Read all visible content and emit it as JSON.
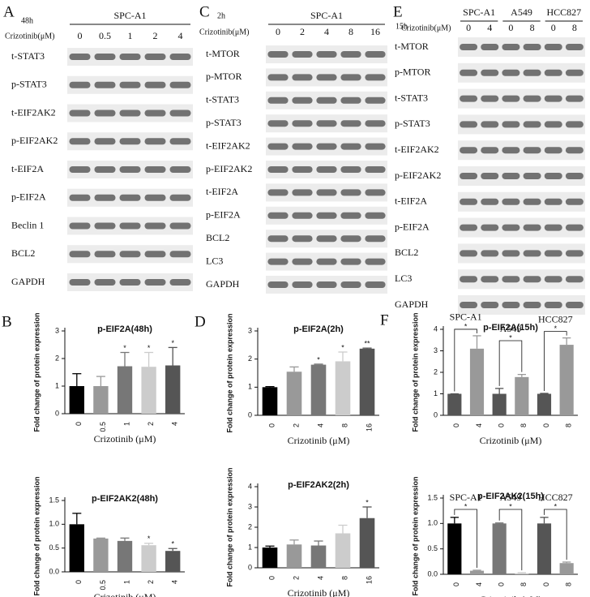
{
  "blots": [
    {
      "panel": "A",
      "time": "48h",
      "groups": [
        "SPC-A1"
      ],
      "dose_label": "Crizotinib(μM)",
      "doses": [
        "0",
        "0.5",
        "1",
        "2",
        "4"
      ],
      "rows": [
        "t-STAT3",
        "p-STAT3",
        "t-EIF2AK2",
        "p-EIF2AK2",
        "t-EIF2A",
        "p-EIF2A",
        "Beclin 1",
        "BCL2",
        "GAPDH"
      ]
    },
    {
      "panel": "C",
      "time": "2h",
      "groups": [
        "SPC-A1"
      ],
      "dose_label": "Crizotinib(μM)",
      "doses": [
        "0",
        "2",
        "4",
        "8",
        "16"
      ],
      "rows": [
        "t-MTOR",
        "p-MTOR",
        "t-STAT3",
        "p-STAT3",
        "t-EIF2AK2",
        "p-EIF2AK2",
        "t-EIF2A",
        "p-EIF2A",
        "BCL2",
        "LC3",
        "GAPDH"
      ]
    },
    {
      "panel": "E",
      "time": "15h",
      "groups": [
        "SPC-A1",
        "A549",
        "HCC827"
      ],
      "dose_label": "Crizotinib(μM)",
      "doses": [
        "0",
        "4",
        "0",
        "8",
        "0",
        "8"
      ],
      "rows": [
        "t-MTOR",
        "p-MTOR",
        "t-STAT3",
        "p-STAT3",
        "t-EIF2AK2",
        "p-EIF2AK2",
        "t-EIF2A",
        "p-EIF2A",
        "BCL2",
        "LC3",
        "GAPDH"
      ]
    }
  ],
  "chart_data": [
    {
      "type": "bar",
      "panel": "B",
      "title": "p-EIF2A(48h)",
      "ylabel": "Fold change of protein expression",
      "xlabel": "Crizotinib (μM)",
      "categories": [
        "0",
        "0.5",
        "1",
        "2",
        "4"
      ],
      "values": [
        1.0,
        1.0,
        1.72,
        1.7,
        1.75
      ],
      "errors": [
        0.45,
        0.35,
        0.5,
        0.52,
        0.65
      ],
      "stars": [
        null,
        null,
        "*",
        "*",
        "*"
      ],
      "colors": [
        "#000000",
        "#999999",
        "#777777",
        "#cccccc",
        "#555555"
      ],
      "ylim": [
        0,
        3
      ],
      "yticks": [
        0,
        1,
        2,
        3
      ]
    },
    {
      "type": "bar",
      "title": "p-EIF2AK2(48h)",
      "ylabel": "Fold change of protein expression",
      "xlabel": "Crizotinib (μM)",
      "categories": [
        "0",
        "0.5",
        "1",
        "2",
        "4"
      ],
      "values": [
        1.0,
        0.7,
        0.65,
        0.56,
        0.44
      ],
      "errors": [
        0.23,
        0.01,
        0.06,
        0.04,
        0.05
      ],
      "stars": [
        null,
        null,
        null,
        "*",
        "*"
      ],
      "colors": [
        "#000000",
        "#999999",
        "#777777",
        "#cccccc",
        "#555555"
      ],
      "ylim": [
        0,
        1.5
      ],
      "yticks": [
        {
          "value": 0,
          "label": "0.0"
        },
        {
          "value": 0.5,
          "label": "0.5"
        },
        {
          "value": 1,
          "label": "1.0"
        },
        {
          "value": 1.5,
          "label": "1.5"
        }
      ]
    },
    {
      "type": "bar",
      "panel": "D",
      "title": "p-EIF2A(2h)",
      "ylabel": "Fold change of protein expression",
      "xlabel": "Crizotinib (μM)",
      "categories": [
        "0",
        "2",
        "4",
        "8",
        "16"
      ],
      "values": [
        1.0,
        1.55,
        1.8,
        1.92,
        2.37
      ],
      "errors": [
        0.02,
        0.17,
        0.02,
        0.33,
        0.02
      ],
      "stars": [
        null,
        null,
        "*",
        "*",
        "**"
      ],
      "colors": [
        "#000000",
        "#999999",
        "#777777",
        "#cccccc",
        "#555555"
      ],
      "ylim": [
        0,
        3
      ],
      "yticks": [
        0,
        1,
        2,
        3
      ]
    },
    {
      "type": "bar",
      "title": "p-EIF2AK2(2h)",
      "ylabel": "Fold change of protein expression",
      "xlabel": "Crizotinib (μM)",
      "categories": [
        "0",
        "2",
        "4",
        "8",
        "16"
      ],
      "values": [
        1.0,
        1.15,
        1.1,
        1.7,
        2.45
      ],
      "errors": [
        0.07,
        0.22,
        0.22,
        0.4,
        0.55
      ],
      "stars": [
        null,
        null,
        null,
        null,
        "*"
      ],
      "colors": [
        "#000000",
        "#999999",
        "#777777",
        "#cccccc",
        "#555555"
      ],
      "ylim": [
        0,
        4
      ],
      "yticks": [
        0,
        1,
        2,
        3,
        4
      ]
    },
    {
      "type": "bar",
      "panel": "F",
      "title": "p-EIF2A(15h)",
      "ylabel": "Fold change of protein expression",
      "xlabel": "Crizotinib (μM)",
      "groups": [
        "SPC-A1",
        "A549",
        "HCC827"
      ],
      "group_stars": [
        "*",
        "*",
        "*"
      ],
      "categories": [
        "0",
        "4",
        "0",
        "8",
        "0",
        "8"
      ],
      "values": [
        1.0,
        3.1,
        1.0,
        1.78,
        1.0,
        3.28
      ],
      "errors": [
        0.0,
        0.6,
        0.25,
        0.12,
        0.02,
        0.32
      ],
      "colors": [
        "#555555",
        "#999999",
        "#555555",
        "#999999",
        "#555555",
        "#999999"
      ],
      "ylim": [
        0,
        4
      ],
      "yticks": [
        0,
        1,
        2,
        3,
        4
      ]
    },
    {
      "type": "bar",
      "title": "p-EIF2AK2(15h)",
      "ylabel": "Fold change of protein expression",
      "xlabel": "Crizotinib (μM)",
      "groups": [
        "SPC-A1",
        "A549",
        "HCC827"
      ],
      "group_stars": [
        "*",
        "*",
        "*"
      ],
      "categories": [
        "0",
        "4",
        "0",
        "8",
        "0",
        "8"
      ],
      "values": [
        1.0,
        0.07,
        1.0,
        0.02,
        1.0,
        0.22
      ],
      "errors": [
        0.12,
        0.01,
        0.01,
        0.01,
        0.12,
        0.02
      ],
      "colors": [
        "#000000",
        "#999999",
        "#777777",
        "#cccccc",
        "#555555",
        "#999999"
      ],
      "ylim": [
        0,
        1.5
      ],
      "yticks": [
        {
          "value": 0,
          "label": "0.0"
        },
        {
          "value": 0.5,
          "label": "0.5"
        },
        {
          "value": 1,
          "label": "1.0"
        },
        {
          "value": 1.5,
          "label": "1.5"
        }
      ]
    }
  ]
}
